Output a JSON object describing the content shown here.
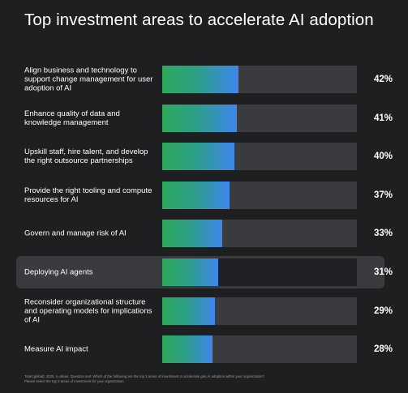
{
  "title": "Top investment areas to accelerate AI adoption",
  "chart_data": {
    "type": "bar",
    "orientation": "horizontal",
    "title": "Top investment areas to accelerate AI adoption",
    "xlim": [
      0,
      100
    ],
    "value_suffix": "%",
    "highlighted_category": "Deploying AI agents",
    "categories": [
      "Align business and technology to support change management for user adoption of AI",
      "Enhance quality of data and knowledge management",
      "Upskill staff, hire talent, and develop the right outsource partnerships",
      "Provide the right tooling and compute resources for AI",
      "Govern and manage risk of AI",
      "Deploying AI agents",
      "Reconsider organizational structure and operating models for implications of AI",
      "Measure AI impact"
    ],
    "values": [
      42,
      41,
      40,
      37,
      33,
      31,
      29,
      28
    ],
    "value_labels": [
      "42%",
      "41%",
      "40%",
      "37%",
      "33%",
      "31%",
      "29%",
      "28%"
    ],
    "colors": {
      "gradient_start": "#2fa85c",
      "gradient_end": "#3f86ee",
      "track": "#3a3b3e",
      "highlight_bg": "#3a3b3e"
    }
  },
  "footnote": {
    "line1": "Total (global): 2025. n=Ideas. Question text: Which of the following are the top 3 areas of investment to accelerate gen AI adoption within your organization?",
    "line2": "Please select the top 3 areas of investment for your organization."
  }
}
